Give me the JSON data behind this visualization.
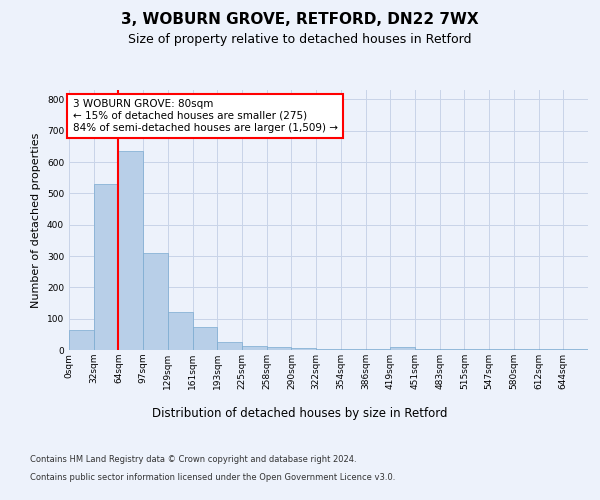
{
  "title1": "3, WOBURN GROVE, RETFORD, DN22 7WX",
  "title2": "Size of property relative to detached houses in Retford",
  "xlabel": "Distribution of detached houses by size in Retford",
  "ylabel": "Number of detached properties",
  "footnote1": "Contains HM Land Registry data © Crown copyright and database right 2024.",
  "footnote2": "Contains public sector information licensed under the Open Government Licence v3.0.",
  "bin_labels": [
    "0sqm",
    "32sqm",
    "64sqm",
    "97sqm",
    "129sqm",
    "161sqm",
    "193sqm",
    "225sqm",
    "258sqm",
    "290sqm",
    "322sqm",
    "354sqm",
    "386sqm",
    "419sqm",
    "451sqm",
    "483sqm",
    "515sqm",
    "547sqm",
    "580sqm",
    "612sqm",
    "644sqm"
  ],
  "bar_heights": [
    65,
    530,
    635,
    310,
    120,
    75,
    27,
    14,
    10,
    7,
    2,
    2,
    2,
    8,
    2,
    2,
    2,
    2,
    2,
    2,
    2
  ],
  "bar_color": "#b8cfe8",
  "bar_edge_color": "#7aaad0",
  "bar_width": 1.0,
  "ylim": [
    0,
    830
  ],
  "yticks": [
    0,
    100,
    200,
    300,
    400,
    500,
    600,
    700,
    800
  ],
  "grid_color": "#c8d4e8",
  "vline_x": 2.0,
  "annotation_text1": "3 WOBURN GROVE: 80sqm",
  "annotation_text2": "← 15% of detached houses are smaller (275)",
  "annotation_text3": "84% of semi-detached houses are larger (1,509) →",
  "annotation_box_color": "white",
  "annotation_box_edge_color": "red",
  "vline_color": "red",
  "background_color": "#edf2fb",
  "plot_bg_color": "#edf2fb",
  "title1_fontsize": 11,
  "title2_fontsize": 9,
  "ylabel_fontsize": 8,
  "xlabel_fontsize": 8.5,
  "tick_fontsize": 6.5,
  "annot_fontsize": 7.5,
  "footnote_fontsize": 6
}
